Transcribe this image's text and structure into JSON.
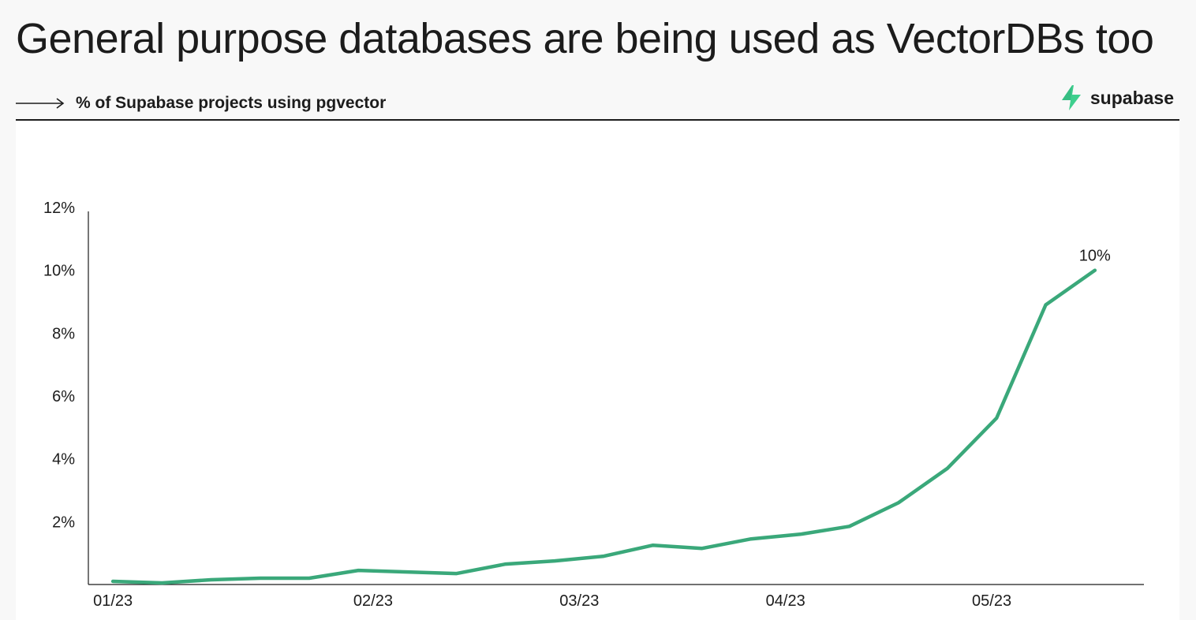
{
  "header": {
    "title": "General purpose databases are being used as VectorDBs too",
    "subtitle": "% of Supabase projects using pgvector",
    "arrow_icon": "long-right-arrow-icon",
    "brand_icon": "lightning-bolt-icon",
    "brand_name": "supabase"
  },
  "colors": {
    "line": "#3ecf8e",
    "line_dark": "#3aa87a",
    "brand_green": "#3ecf8e",
    "text": "#1c1c1c"
  },
  "chart_data": {
    "type": "line",
    "title": "General purpose databases are being used as VectorDBs too",
    "subtitle": "% of Supabase projects using pgvector",
    "xlabel": "",
    "ylabel": "",
    "x_ticks": [
      "01/23",
      "02/23",
      "03/23",
      "04/23",
      "05/23"
    ],
    "x_tick_positions": [
      0,
      5.3,
      9.5,
      13.7,
      17.9
    ],
    "y_ticks": [
      2,
      4,
      6,
      8,
      10,
      12
    ],
    "y_tick_labels": [
      "2%",
      "4%",
      "6%",
      "8%",
      "10%",
      "12%"
    ],
    "ylim": [
      0,
      12
    ],
    "xlim": [
      -0.5,
      21
    ],
    "grid": false,
    "legend": "none",
    "series": [
      {
        "values": [
          0.1,
          0.05,
          0.15,
          0.2,
          0.2,
          0.45,
          0.4,
          0.35,
          0.65,
          0.75,
          0.9,
          1.25,
          1.15,
          1.45,
          1.6,
          1.85,
          2.6,
          3.7,
          5.3,
          8.9,
          10.0
        ],
        "x": [
          0,
          1,
          2,
          3,
          4,
          5,
          6,
          7,
          8,
          9,
          10,
          11,
          12,
          13,
          14,
          15,
          16,
          17,
          18,
          19,
          20
        ]
      }
    ],
    "annotations": [
      {
        "text": "10%",
        "x": 20,
        "y": 10.0
      }
    ]
  }
}
